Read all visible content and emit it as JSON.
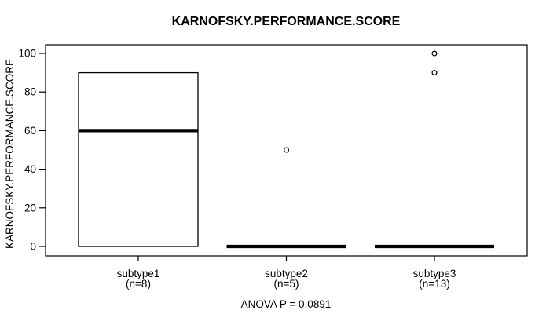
{
  "chart_data": {
    "type": "boxplot",
    "title": "KARNOFSKY.PERFORMANCE.SCORE",
    "ylabel": "KARNOFSKY.PERFORMANCE.SCORE",
    "xlabel": "",
    "annotation": "ANOVA P = 0.0891",
    "ylim": [
      0,
      100
    ],
    "yticks": [
      0,
      20,
      40,
      60,
      80,
      100
    ],
    "grid": false,
    "legend": null,
    "groups": [
      {
        "label": "subtype1",
        "sublabel": "(n=8)",
        "n": 8,
        "q1": 0,
        "median": 60,
        "q3": 90,
        "whisker_low": 0,
        "whisker_high": 90,
        "outliers": []
      },
      {
        "label": "subtype2",
        "sublabel": "(n=5)",
        "n": 5,
        "q1": 0,
        "median": 0,
        "q3": 0,
        "whisker_low": 0,
        "whisker_high": 0,
        "outliers": [
          50
        ]
      },
      {
        "label": "subtype3",
        "sublabel": "(n=13)",
        "n": 13,
        "q1": 0,
        "median": 0,
        "q3": 0,
        "whisker_low": 0,
        "whisker_high": 0,
        "outliers": [
          100,
          90
        ]
      }
    ],
    "colors": {
      "stroke": "#000000",
      "box_fill": "#ffffff",
      "background": "#ffffff"
    }
  }
}
